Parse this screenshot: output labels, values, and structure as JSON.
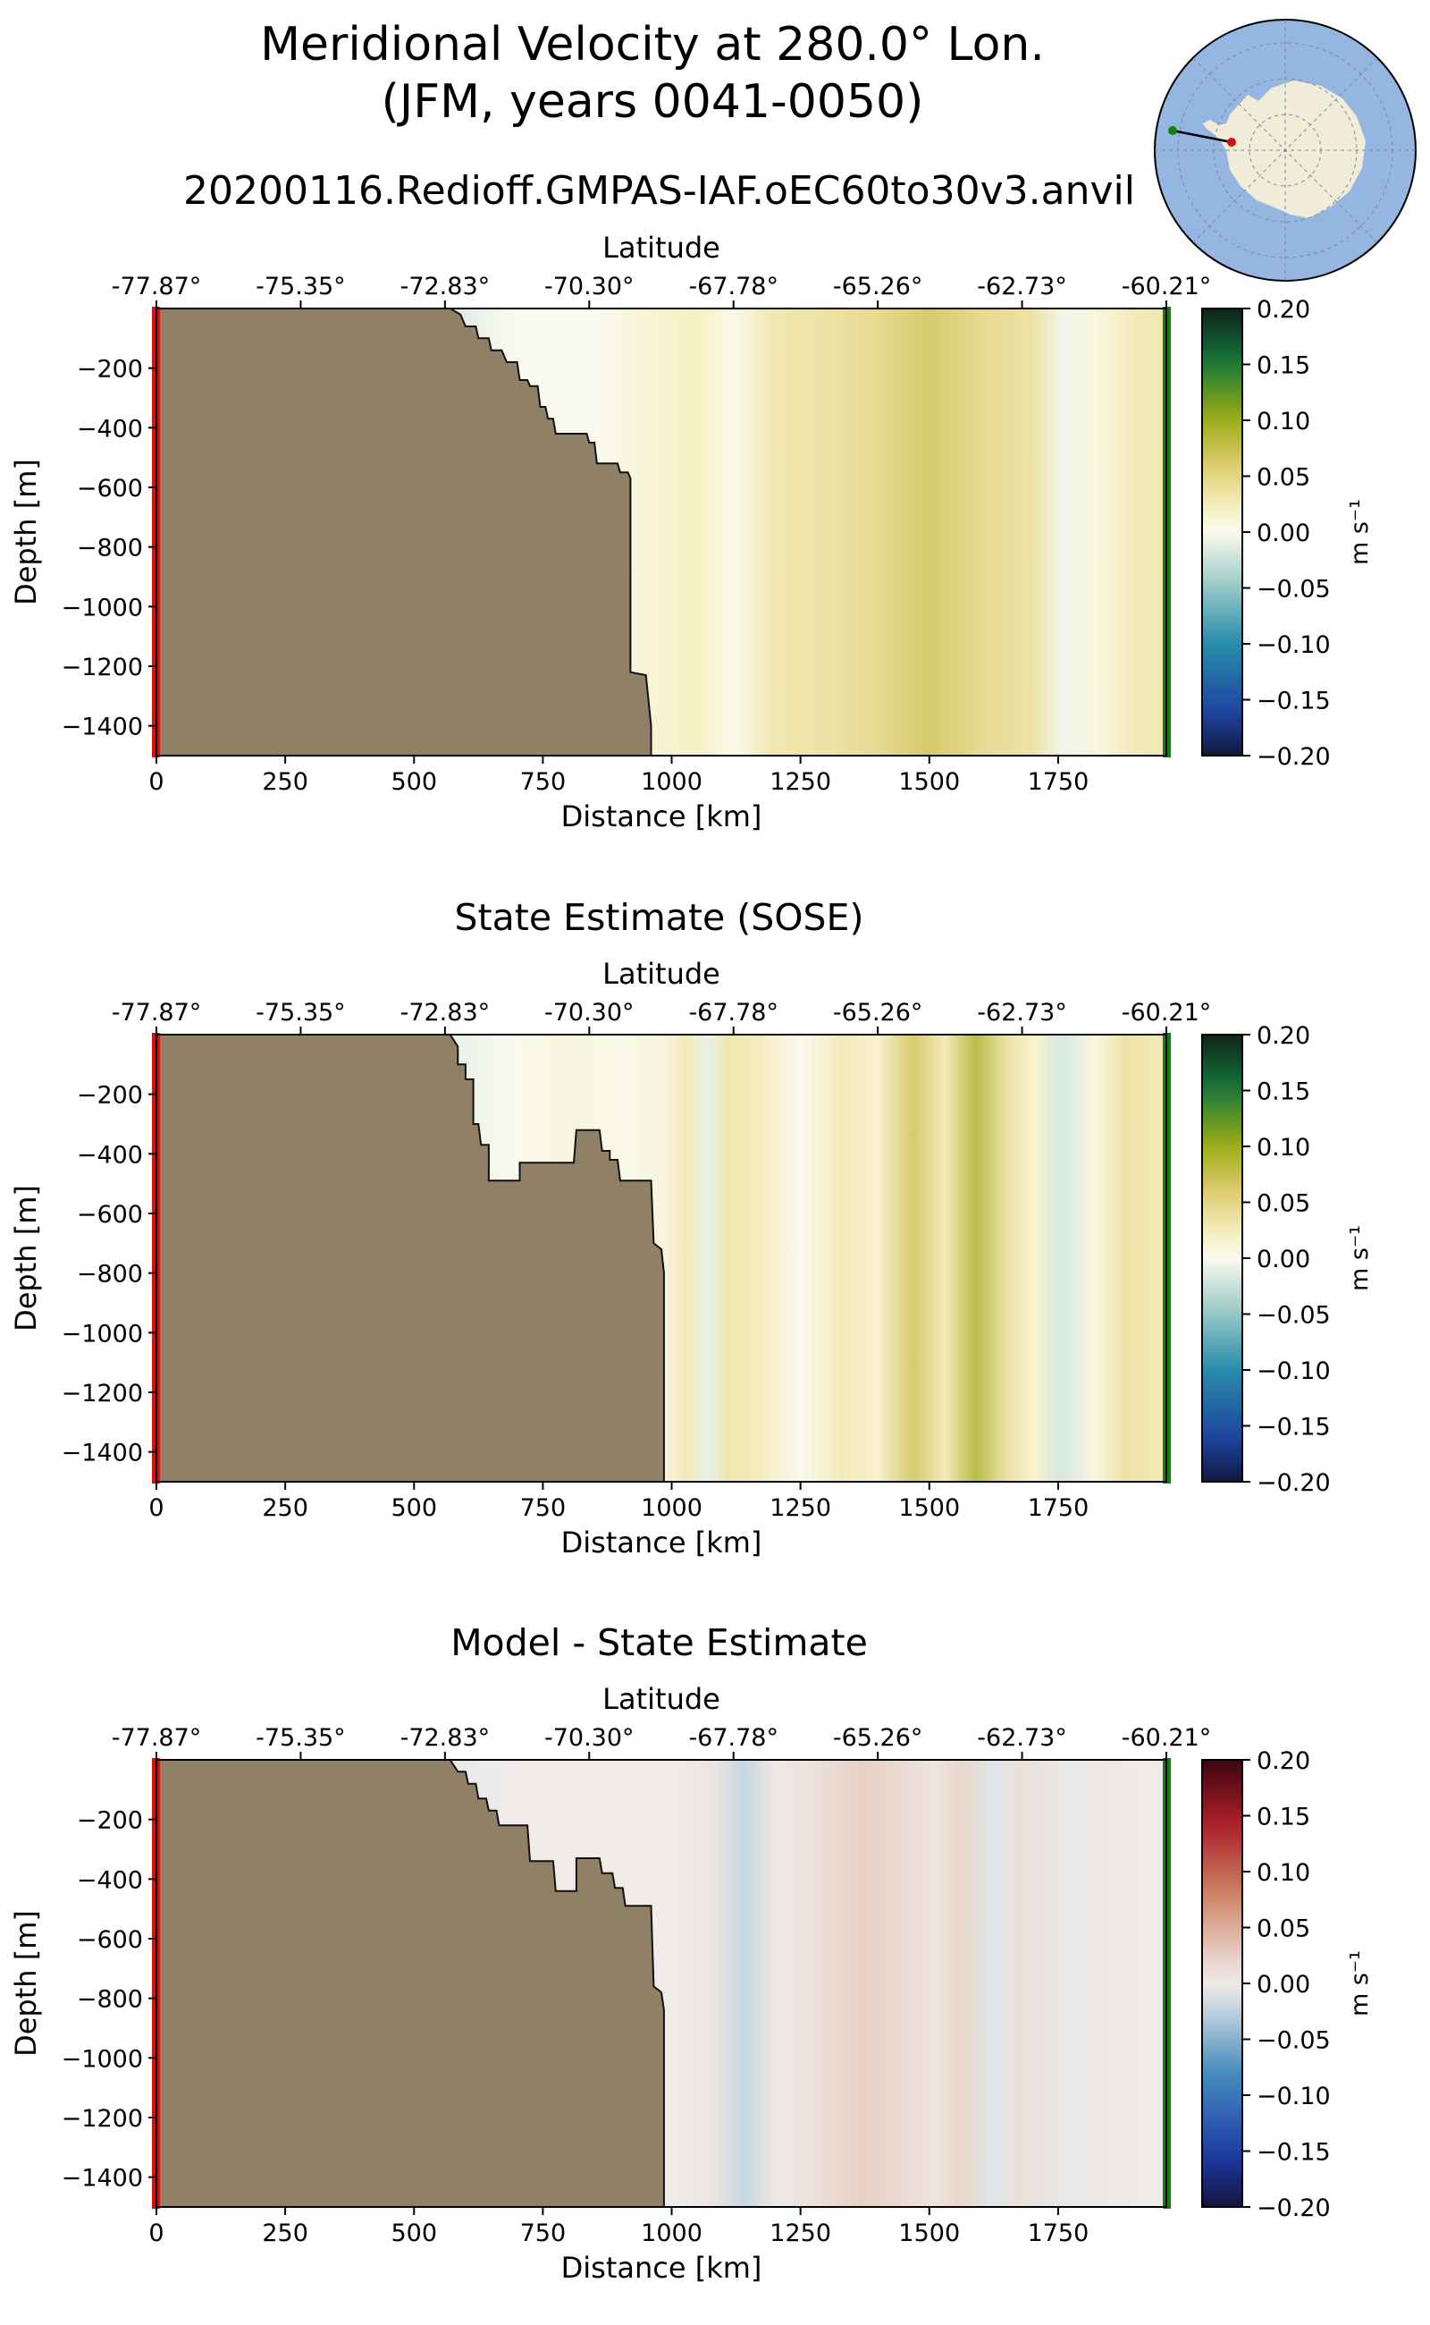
{
  "figure": {
    "title_line1": "Meridional Velocity at 280.0° Lon.",
    "title_line2": "(JFM, years 0041-0050)",
    "subtitle": "20200116.Redioff.GMPAS-IAF.oEC60to30v3.anvil",
    "land_color": "#8f8066",
    "start_marker_color": "#d11010",
    "end_marker_color": "#108010",
    "inset_map": {
      "ocean_color": "#94b6e0",
      "land_color": "#f0ecd8"
    }
  },
  "chart_data": [
    {
      "type": "heatmap",
      "title": "",
      "xlabel": "Distance [km]",
      "ylabel": "Depth [m]",
      "top_axis_label": "Latitude",
      "xlim": [
        0,
        1960
      ],
      "ylim": [
        -1500,
        0
      ],
      "x_ticks": [
        0,
        250,
        500,
        750,
        1000,
        1250,
        1500,
        1750
      ],
      "y_ticks": [
        -200,
        -400,
        -600,
        -800,
        -1000,
        -1200,
        -1400
      ],
      "top_ticks": [
        {
          "distance": 0,
          "label": "-77.87°"
        },
        {
          "distance": 280,
          "label": "-75.35°"
        },
        {
          "distance": 560,
          "label": "-72.83°"
        },
        {
          "distance": 840,
          "label": "-70.30°"
        },
        {
          "distance": 1120,
          "label": "-67.78°"
        },
        {
          "distance": 1400,
          "label": "-65.26°"
        },
        {
          "distance": 1680,
          "label": "-62.73°"
        },
        {
          "distance": 1960,
          "label": "-60.21°"
        }
      ],
      "colorbar": {
        "cmap": "ocean-velocity",
        "label": "m s⁻¹",
        "range": [
          -0.2,
          0.2
        ],
        "ticks": [
          "0.20",
          "0.15",
          "0.10",
          "0.05",
          "0.00",
          "−0.05",
          "−0.10",
          "−0.15",
          "−0.20"
        ]
      },
      "field_columns": [
        {
          "x": 570,
          "v": -0.02
        },
        {
          "x": 620,
          "v": -0.01
        },
        {
          "x": 700,
          "v": 0.0
        },
        {
          "x": 850,
          "v": 0.0
        },
        {
          "x": 950,
          "v": 0.015
        },
        {
          "x": 1050,
          "v": 0.025
        },
        {
          "x": 1120,
          "v": 0.003
        },
        {
          "x": 1200,
          "v": 0.035
        },
        {
          "x": 1300,
          "v": 0.04
        },
        {
          "x": 1400,
          "v": 0.05
        },
        {
          "x": 1500,
          "v": 0.07
        },
        {
          "x": 1600,
          "v": 0.05
        },
        {
          "x": 1700,
          "v": 0.04
        },
        {
          "x": 1760,
          "v": -0.005
        },
        {
          "x": 1820,
          "v": 0.01
        },
        {
          "x": 1900,
          "v": 0.03
        },
        {
          "x": 1960,
          "v": 0.035
        }
      ],
      "bathymetry": [
        {
          "x": 0,
          "depth": -1500
        },
        {
          "x": 0,
          "depth": 0
        },
        {
          "x": 570,
          "depth": 0
        },
        {
          "x": 590,
          "depth": -20
        },
        {
          "x": 600,
          "depth": -60
        },
        {
          "x": 620,
          "depth": -60
        },
        {
          "x": 625,
          "depth": -100
        },
        {
          "x": 645,
          "depth": -100
        },
        {
          "x": 650,
          "depth": -140
        },
        {
          "x": 670,
          "depth": -140
        },
        {
          "x": 680,
          "depth": -180
        },
        {
          "x": 700,
          "depth": -180
        },
        {
          "x": 705,
          "depth": -240
        },
        {
          "x": 720,
          "depth": -240
        },
        {
          "x": 725,
          "depth": -260
        },
        {
          "x": 740,
          "depth": -260
        },
        {
          "x": 745,
          "depth": -330
        },
        {
          "x": 755,
          "depth": -330
        },
        {
          "x": 760,
          "depth": -370
        },
        {
          "x": 770,
          "depth": -370
        },
        {
          "x": 775,
          "depth": -420
        },
        {
          "x": 835,
          "depth": -420
        },
        {
          "x": 840,
          "depth": -450
        },
        {
          "x": 850,
          "depth": -450
        },
        {
          "x": 855,
          "depth": -520
        },
        {
          "x": 895,
          "depth": -520
        },
        {
          "x": 900,
          "depth": -550
        },
        {
          "x": 915,
          "depth": -550
        },
        {
          "x": 920,
          "depth": -570
        },
        {
          "x": 920,
          "depth": -1220
        },
        {
          "x": 950,
          "depth": -1230
        },
        {
          "x": 960,
          "depth": -1400
        },
        {
          "x": 960,
          "depth": -1500
        }
      ]
    },
    {
      "type": "heatmap",
      "title": "State Estimate (SOSE)",
      "xlabel": "Distance [km]",
      "ylabel": "Depth [m]",
      "top_axis_label": "Latitude",
      "xlim": [
        0,
        1960
      ],
      "ylim": [
        -1500,
        0
      ],
      "x_ticks": [
        0,
        250,
        500,
        750,
        1000,
        1250,
        1500,
        1750
      ],
      "y_ticks": [
        -200,
        -400,
        -600,
        -800,
        -1000,
        -1200,
        -1400
      ],
      "top_ticks": [
        {
          "distance": 0,
          "label": "-77.87°"
        },
        {
          "distance": 280,
          "label": "-75.35°"
        },
        {
          "distance": 560,
          "label": "-72.83°"
        },
        {
          "distance": 840,
          "label": "-70.30°"
        },
        {
          "distance": 1120,
          "label": "-67.78°"
        },
        {
          "distance": 1400,
          "label": "-65.26°"
        },
        {
          "distance": 1680,
          "label": "-62.73°"
        },
        {
          "distance": 1960,
          "label": "-60.21°"
        }
      ],
      "colorbar": {
        "cmap": "ocean-velocity",
        "label": "m s⁻¹",
        "range": [
          -0.2,
          0.2
        ],
        "ticks": [
          "0.20",
          "0.15",
          "0.10",
          "0.05",
          "0.00",
          "−0.05",
          "−0.10",
          "−0.15",
          "−0.20"
        ]
      },
      "field_columns": [
        {
          "x": 570,
          "v": -0.01
        },
        {
          "x": 700,
          "v": 0.002
        },
        {
          "x": 800,
          "v": 0.01
        },
        {
          "x": 900,
          "v": 0.005
        },
        {
          "x": 980,
          "v": 0.01
        },
        {
          "x": 1030,
          "v": 0.03
        },
        {
          "x": 1070,
          "v": -0.01
        },
        {
          "x": 1110,
          "v": 0.035
        },
        {
          "x": 1160,
          "v": 0.03
        },
        {
          "x": 1250,
          "v": 0.0
        },
        {
          "x": 1330,
          "v": 0.03
        },
        {
          "x": 1400,
          "v": 0.02
        },
        {
          "x": 1470,
          "v": 0.07
        },
        {
          "x": 1530,
          "v": 0.03
        },
        {
          "x": 1590,
          "v": 0.09
        },
        {
          "x": 1650,
          "v": 0.04
        },
        {
          "x": 1700,
          "v": 0.02
        },
        {
          "x": 1760,
          "v": -0.02
        },
        {
          "x": 1820,
          "v": 0.01
        },
        {
          "x": 1880,
          "v": 0.04
        },
        {
          "x": 1960,
          "v": 0.03
        }
      ],
      "bathymetry": [
        {
          "x": 0,
          "depth": -1500
        },
        {
          "x": 0,
          "depth": 0
        },
        {
          "x": 570,
          "depth": 0
        },
        {
          "x": 585,
          "depth": -40
        },
        {
          "x": 585,
          "depth": -100
        },
        {
          "x": 600,
          "depth": -100
        },
        {
          "x": 600,
          "depth": -150
        },
        {
          "x": 615,
          "depth": -150
        },
        {
          "x": 615,
          "depth": -300
        },
        {
          "x": 625,
          "depth": -300
        },
        {
          "x": 630,
          "depth": -370
        },
        {
          "x": 645,
          "depth": -370
        },
        {
          "x": 645,
          "depth": -490
        },
        {
          "x": 705,
          "depth": -490
        },
        {
          "x": 705,
          "depth": -430
        },
        {
          "x": 810,
          "depth": -430
        },
        {
          "x": 815,
          "depth": -320
        },
        {
          "x": 860,
          "depth": -320
        },
        {
          "x": 865,
          "depth": -390
        },
        {
          "x": 880,
          "depth": -390
        },
        {
          "x": 880,
          "depth": -420
        },
        {
          "x": 895,
          "depth": -420
        },
        {
          "x": 900,
          "depth": -490
        },
        {
          "x": 960,
          "depth": -490
        },
        {
          "x": 965,
          "depth": -700
        },
        {
          "x": 980,
          "depth": -720
        },
        {
          "x": 985,
          "depth": -800
        },
        {
          "x": 985,
          "depth": -1500
        }
      ]
    },
    {
      "type": "heatmap",
      "title": "Model - State Estimate",
      "xlabel": "Distance [km]",
      "ylabel": "Depth [m]",
      "top_axis_label": "Latitude",
      "xlim": [
        0,
        1960
      ],
      "ylim": [
        -1500,
        0
      ],
      "x_ticks": [
        0,
        250,
        500,
        750,
        1000,
        1250,
        1500,
        1750
      ],
      "y_ticks": [
        -200,
        -400,
        -600,
        -800,
        -1000,
        -1200,
        -1400
      ],
      "top_ticks": [
        {
          "distance": 0,
          "label": "-77.87°"
        },
        {
          "distance": 280,
          "label": "-75.35°"
        },
        {
          "distance": 560,
          "label": "-72.83°"
        },
        {
          "distance": 840,
          "label": "-70.30°"
        },
        {
          "distance": 1120,
          "label": "-67.78°"
        },
        {
          "distance": 1400,
          "label": "-65.26°"
        },
        {
          "distance": 1680,
          "label": "-62.73°"
        },
        {
          "distance": 1960,
          "label": "-60.21°"
        }
      ],
      "colorbar": {
        "cmap": "diverging-balance",
        "label": "m s⁻¹",
        "range": [
          -0.2,
          0.2
        ],
        "ticks": [
          "0.20",
          "0.15",
          "0.10",
          "0.05",
          "0.00",
          "−0.05",
          "−0.10",
          "−0.15",
          "−0.20"
        ]
      },
      "field_columns": [
        {
          "x": 570,
          "v": -0.005
        },
        {
          "x": 700,
          "v": 0.0
        },
        {
          "x": 900,
          "v": 0.0
        },
        {
          "x": 1000,
          "v": 0.0
        },
        {
          "x": 1080,
          "v": 0.01
        },
        {
          "x": 1140,
          "v": -0.025
        },
        {
          "x": 1200,
          "v": 0.005
        },
        {
          "x": 1270,
          "v": 0.012
        },
        {
          "x": 1370,
          "v": 0.03
        },
        {
          "x": 1450,
          "v": 0.02
        },
        {
          "x": 1510,
          "v": 0.01
        },
        {
          "x": 1560,
          "v": 0.025
        },
        {
          "x": 1620,
          "v": -0.01
        },
        {
          "x": 1680,
          "v": 0.015
        },
        {
          "x": 1760,
          "v": -0.005
        },
        {
          "x": 1850,
          "v": 0.005
        },
        {
          "x": 1960,
          "v": 0.0
        }
      ],
      "bathymetry": [
        {
          "x": 0,
          "depth": -1500
        },
        {
          "x": 0,
          "depth": 0
        },
        {
          "x": 570,
          "depth": 0
        },
        {
          "x": 585,
          "depth": -40
        },
        {
          "x": 600,
          "depth": -40
        },
        {
          "x": 605,
          "depth": -80
        },
        {
          "x": 620,
          "depth": -80
        },
        {
          "x": 625,
          "depth": -130
        },
        {
          "x": 640,
          "depth": -130
        },
        {
          "x": 645,
          "depth": -170
        },
        {
          "x": 660,
          "depth": -170
        },
        {
          "x": 665,
          "depth": -220
        },
        {
          "x": 720,
          "depth": -220
        },
        {
          "x": 725,
          "depth": -340
        },
        {
          "x": 770,
          "depth": -340
        },
        {
          "x": 775,
          "depth": -440
        },
        {
          "x": 815,
          "depth": -440
        },
        {
          "x": 815,
          "depth": -330
        },
        {
          "x": 860,
          "depth": -330
        },
        {
          "x": 865,
          "depth": -380
        },
        {
          "x": 885,
          "depth": -380
        },
        {
          "x": 890,
          "depth": -430
        },
        {
          "x": 905,
          "depth": -430
        },
        {
          "x": 910,
          "depth": -490
        },
        {
          "x": 960,
          "depth": -490
        },
        {
          "x": 965,
          "depth": -760
        },
        {
          "x": 980,
          "depth": -780
        },
        {
          "x": 985,
          "depth": -840
        },
        {
          "x": 985,
          "depth": -1500
        }
      ]
    }
  ]
}
